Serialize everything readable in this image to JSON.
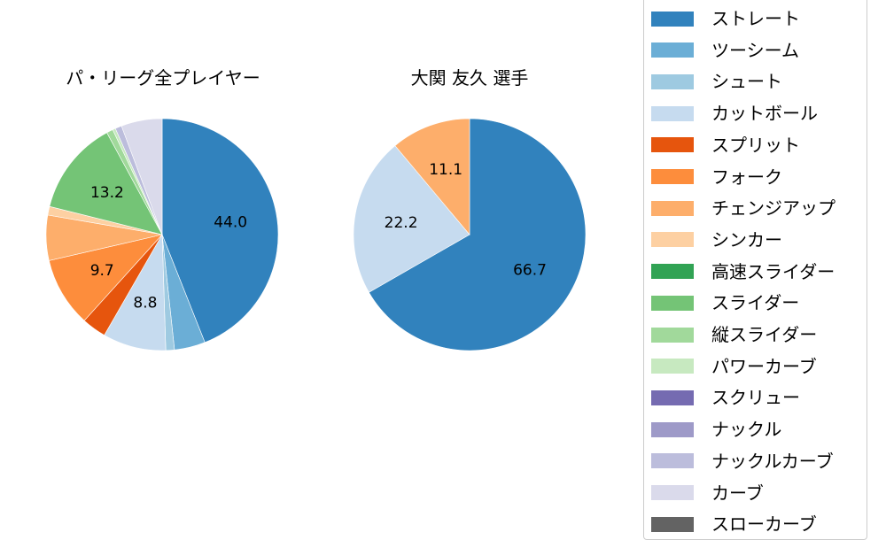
{
  "chart_data": [
    {
      "type": "pie",
      "title": "パ・リーグ全プレイヤー",
      "start_angle": 90,
      "direction": "clockwise",
      "categories": [
        "ストレート",
        "ツーシーム",
        "シュート",
        "カットボール",
        "スプリット",
        "フォーク",
        "チェンジアップ",
        "シンカー",
        "スライダー",
        "縦スライダー",
        "パワーカーブ",
        "ナックルカーブ",
        "カーブ"
      ],
      "values": [
        44.0,
        4.3,
        1.2,
        8.8,
        3.4,
        9.7,
        6.3,
        1.2,
        13.2,
        0.9,
        0.4,
        0.9,
        5.7
      ],
      "labeled_values": {
        "ストレート": "44.0",
        "カットボール": "8.8",
        "フォーク": "9.7",
        "スライダー": "13.2"
      }
    },
    {
      "type": "pie",
      "title": "大関 友久  選手",
      "start_angle": 90,
      "direction": "clockwise",
      "categories": [
        "ストレート",
        "カットボール",
        "チェンジアップ"
      ],
      "values": [
        66.7,
        22.2,
        11.1
      ],
      "labeled_values": {
        "ストレート": "66.7",
        "カットボール": "22.2",
        "チェンジアップ": "11.1"
      }
    }
  ],
  "titles": {
    "left": "パ・リーグ全プレイヤー",
    "right": "大関 友久  選手"
  },
  "legend": {
    "items": [
      {
        "label": "ストレート",
        "color": "#3182bd"
      },
      {
        "label": "ツーシーム",
        "color": "#6baed6"
      },
      {
        "label": "シュート",
        "color": "#9ecae1"
      },
      {
        "label": "カットボール",
        "color": "#c6dbef"
      },
      {
        "label": "スプリット",
        "color": "#e6550d"
      },
      {
        "label": "フォーク",
        "color": "#fd8d3c"
      },
      {
        "label": "チェンジアップ",
        "color": "#fdae6b"
      },
      {
        "label": "シンカー",
        "color": "#fdd0a2"
      },
      {
        "label": "高速スライダー",
        "color": "#31a354"
      },
      {
        "label": "スライダー",
        "color": "#74c476"
      },
      {
        "label": "縦スライダー",
        "color": "#a1d99b"
      },
      {
        "label": "パワーカーブ",
        "color": "#c7e9c0"
      },
      {
        "label": "スクリュー",
        "color": "#756bb1"
      },
      {
        "label": "ナックル",
        "color": "#9e9ac8"
      },
      {
        "label": "ナックルカーブ",
        "color": "#bcbddc"
      },
      {
        "label": "カーブ",
        "color": "#dadaeb"
      },
      {
        "label": "スローカーブ",
        "color": "#636363"
      }
    ]
  }
}
